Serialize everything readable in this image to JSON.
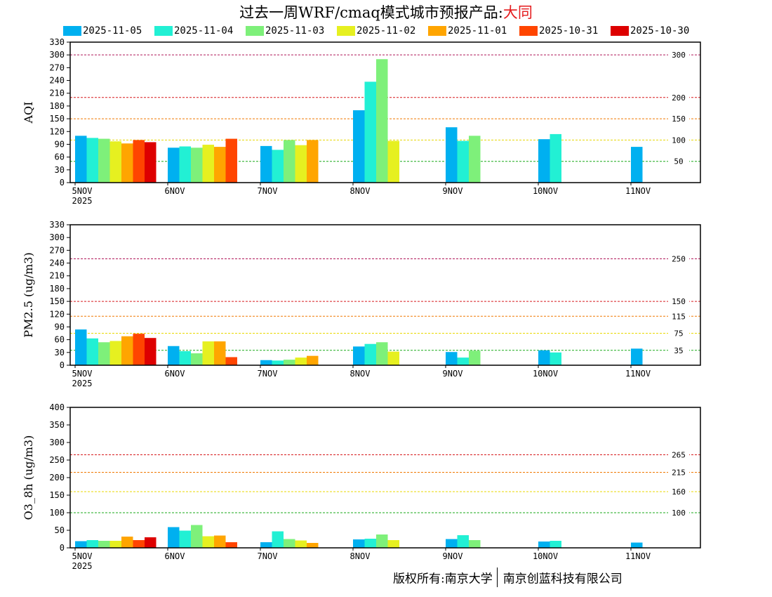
{
  "header": {
    "title_prefix": "过去一周WRF/cmaq模式城市预报产品:",
    "city": "大同",
    "city_color": "#e41a1c"
  },
  "credit": {
    "left": "版权所有:南京大学",
    "right": "南京创蓝科技有限公司"
  },
  "legend": [
    {
      "label": "2025-11-05",
      "color": "#00b0f0"
    },
    {
      "label": "2025-11-04",
      "color": "#22f0d4"
    },
    {
      "label": "2025-11-03",
      "color": "#7ef07a"
    },
    {
      "label": "2025-11-02",
      "color": "#e6f020"
    },
    {
      "label": "2025-11-01",
      "color": "#ffa500"
    },
    {
      "label": "2025-10-31",
      "color": "#ff4500"
    },
    {
      "label": "2025-10-30",
      "color": "#dd0000"
    }
  ],
  "chart_data": [
    {
      "type": "bar",
      "ylabel": "AQI",
      "ylim": [
        0,
        330
      ],
      "yticks": [
        0,
        30,
        60,
        90,
        120,
        150,
        180,
        210,
        240,
        270,
        300,
        330
      ],
      "x_tick_labels": [
        "5NOV",
        "6NOV",
        "7NOV",
        "8NOV",
        "9NOV",
        "10NOV",
        "11NOV"
      ],
      "x_sublabel": "2025",
      "thresholds": [
        {
          "value": 300,
          "label": "300",
          "color": "#b0185a"
        },
        {
          "value": 200,
          "label": "200",
          "color": "#d7191c"
        },
        {
          "value": 150,
          "label": "150",
          "color": "#f07800"
        },
        {
          "value": 100,
          "label": "100",
          "color": "#e8d800"
        },
        {
          "value": 50,
          "label": "50",
          "color": "#1aaa1a"
        }
      ],
      "series": [
        {
          "name": "2025-11-05",
          "values": [
            110,
            82,
            86,
            170,
            130,
            102,
            84
          ]
        },
        {
          "name": "2025-11-04",
          "values": [
            105,
            85,
            77,
            237,
            98,
            114,
            null
          ]
        },
        {
          "name": "2025-11-03",
          "values": [
            103,
            82,
            100,
            290,
            110,
            null,
            null
          ]
        },
        {
          "name": "2025-11-02",
          "values": [
            97,
            89,
            88,
            98,
            null,
            null,
            null
          ]
        },
        {
          "name": "2025-11-01",
          "values": [
            92,
            84,
            100,
            null,
            null,
            null,
            null
          ]
        },
        {
          "name": "2025-10-31",
          "values": [
            100,
            103,
            null,
            null,
            null,
            null,
            null
          ]
        },
        {
          "name": "2025-10-30",
          "values": [
            95,
            null,
            null,
            null,
            null,
            null,
            null
          ]
        }
      ]
    },
    {
      "type": "bar",
      "ylabel": "PM2.5 (ug/m3)",
      "ylim": [
        0,
        330
      ],
      "yticks": [
        0,
        30,
        60,
        90,
        120,
        150,
        180,
        210,
        240,
        270,
        300,
        330
      ],
      "x_tick_labels": [
        "5NOV",
        "6NOV",
        "7NOV",
        "8NOV",
        "9NOV",
        "10NOV",
        "11NOV"
      ],
      "x_sublabel": "2025",
      "thresholds": [
        {
          "value": 250,
          "label": "250",
          "color": "#b0185a"
        },
        {
          "value": 150,
          "label": "150",
          "color": "#d7191c"
        },
        {
          "value": 115,
          "label": "115",
          "color": "#f07800"
        },
        {
          "value": 75,
          "label": "75",
          "color": "#e8d800"
        },
        {
          "value": 35,
          "label": "35",
          "color": "#1aaa1a"
        }
      ],
      "series": [
        {
          "name": "2025-11-05",
          "values": [
            84,
            45,
            12,
            44,
            31,
            35,
            39
          ]
        },
        {
          "name": "2025-11-04",
          "values": [
            63,
            33,
            11,
            50,
            18,
            30,
            null
          ]
        },
        {
          "name": "2025-11-03",
          "values": [
            54,
            28,
            13,
            54,
            34,
            null,
            null
          ]
        },
        {
          "name": "2025-11-02",
          "values": [
            57,
            56,
            18,
            32,
            null,
            null,
            null
          ]
        },
        {
          "name": "2025-11-01",
          "values": [
            68,
            56,
            22,
            null,
            null,
            null,
            null
          ]
        },
        {
          "name": "2025-10-31",
          "values": [
            74,
            19,
            null,
            null,
            null,
            null,
            null
          ]
        },
        {
          "name": "2025-10-30",
          "values": [
            64,
            null,
            null,
            null,
            null,
            null,
            null
          ]
        }
      ]
    },
    {
      "type": "bar",
      "ylabel": "O3_8h (ug/m3)",
      "ylim": [
        0,
        400
      ],
      "yticks": [
        0,
        50,
        100,
        150,
        200,
        250,
        300,
        350,
        400
      ],
      "x_tick_labels": [
        "5NOV",
        "6NOV",
        "7NOV",
        "8NOV",
        "9NOV",
        "10NOV",
        "11NOV"
      ],
      "x_sublabel": "2025",
      "thresholds": [
        {
          "value": 265,
          "label": "265",
          "color": "#d7191c"
        },
        {
          "value": 215,
          "label": "215",
          "color": "#f07800"
        },
        {
          "value": 160,
          "label": "160",
          "color": "#e8d800"
        },
        {
          "value": 100,
          "label": "100",
          "color": "#1aaa1a"
        }
      ],
      "series": [
        {
          "name": "2025-11-05",
          "values": [
            19,
            59,
            16,
            24,
            25,
            18,
            15
          ]
        },
        {
          "name": "2025-11-04",
          "values": [
            22,
            49,
            47,
            26,
            36,
            20,
            null
          ]
        },
        {
          "name": "2025-11-03",
          "values": [
            20,
            65,
            25,
            38,
            22,
            null,
            null
          ]
        },
        {
          "name": "2025-11-02",
          "values": [
            20,
            33,
            21,
            22,
            null,
            null,
            null
          ]
        },
        {
          "name": "2025-11-01",
          "values": [
            32,
            35,
            14,
            null,
            null,
            null,
            null
          ]
        },
        {
          "name": "2025-10-31",
          "values": [
            22,
            16,
            null,
            null,
            null,
            null,
            null
          ]
        },
        {
          "name": "2025-10-30",
          "values": [
            30,
            null,
            null,
            null,
            null,
            null,
            null
          ]
        }
      ]
    }
  ]
}
